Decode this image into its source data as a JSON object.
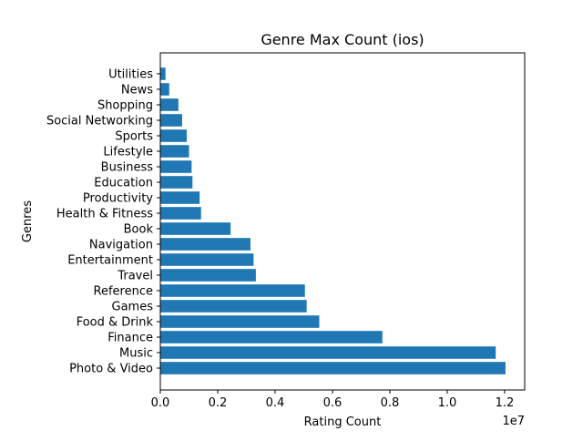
{
  "chart_data": {
    "type": "bar",
    "orientation": "horizontal",
    "title": "Genre Max Count (ios)",
    "xlabel": "Rating Count",
    "ylabel": "Genres",
    "x_offset_label": "1e7",
    "xlim": [
      0,
      12700000
    ],
    "xticks": [
      0,
      2000000,
      4000000,
      6000000,
      8000000,
      10000000,
      12000000
    ],
    "xtick_labels": [
      "0.0",
      "0.2",
      "0.4",
      "0.6",
      "0.8",
      "1.0",
      "1.2"
    ],
    "grid": false,
    "bar_color": "#1f77b4",
    "categories": [
      "Photo & Video",
      "Music",
      "Finance",
      "Food & Drink",
      "Games",
      "Reference",
      "Travel",
      "Entertainment",
      "Navigation",
      "Book",
      "Health & Fitness",
      "Productivity",
      "Education",
      "Business",
      "Lifestyle",
      "Sports",
      "Social Networking",
      "Shopping",
      "News",
      "Utilities"
    ],
    "values": [
      12030000,
      11690000,
      7740000,
      5540000,
      5100000,
      5040000,
      3330000,
      3250000,
      3140000,
      2450000,
      1420000,
      1370000,
      1120000,
      1090000,
      1000000,
      920000,
      760000,
      630000,
      310000,
      180000
    ]
  }
}
